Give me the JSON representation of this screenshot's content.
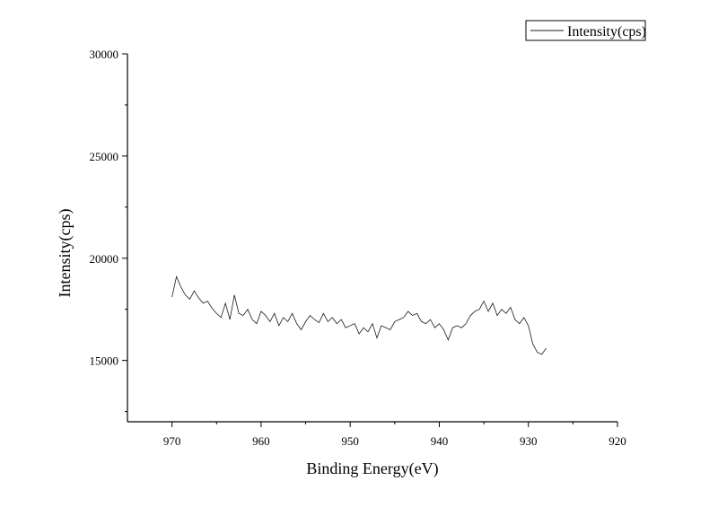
{
  "chart_data": {
    "type": "line",
    "xlabel": "Binding Energy(eV)",
    "ylabel": "Intensity(cps)",
    "xlim": [
      975,
      920
    ],
    "x_reversed": true,
    "ylim": [
      12000,
      30000
    ],
    "x_ticks": [
      970,
      960,
      950,
      940,
      930,
      920
    ],
    "y_ticks": [
      15000,
      20000,
      25000,
      30000
    ],
    "y_minor_ticks": [
      12500,
      17500,
      22500,
      27500
    ],
    "grid": false,
    "legend_position": "top-right",
    "series": [
      {
        "name": "Intensity(cps)",
        "color": "#1a1a1a",
        "x": [
          970,
          969.5,
          969,
          968.5,
          968,
          967.5,
          967,
          966.5,
          966,
          965.5,
          965,
          964.5,
          964,
          963.5,
          963,
          962.5,
          962,
          961.5,
          961,
          960.5,
          960,
          959.5,
          959,
          958.5,
          958,
          957.5,
          957,
          956.5,
          956,
          955.5,
          955,
          954.5,
          954,
          953.5,
          953,
          952.5,
          952,
          951.5,
          951,
          950.5,
          950,
          949.5,
          949,
          948.5,
          948,
          947.5,
          947,
          946.5,
          946,
          945.5,
          945,
          944.5,
          944,
          943.5,
          943,
          942.5,
          942,
          941.5,
          941,
          940.5,
          940,
          939.5,
          939,
          938.5,
          938,
          937.5,
          937,
          936.5,
          936,
          935.5,
          935,
          934.5,
          934,
          933.5,
          933,
          932.5,
          932,
          931.5,
          931,
          930.5,
          930,
          929.5,
          929,
          928.5,
          928
        ],
        "y": [
          18100,
          19100,
          18600,
          18200,
          18000,
          18400,
          18050,
          17800,
          17900,
          17550,
          17300,
          17100,
          17800,
          17000,
          18200,
          17300,
          17200,
          17500,
          17000,
          16800,
          17400,
          17200,
          16900,
          17300,
          16700,
          17100,
          16900,
          17300,
          16800,
          16500,
          16900,
          17200,
          17000,
          16850,
          17300,
          16900,
          17100,
          16800,
          17000,
          16600,
          16700,
          16800,
          16300,
          16600,
          16400,
          16800,
          16100,
          16700,
          16600,
          16500,
          16900,
          17000,
          17100,
          17400,
          17200,
          17300,
          16900,
          16800,
          17000,
          16600,
          16800,
          16500,
          16000,
          16600,
          16700,
          16600,
          16800,
          17200,
          17400,
          17500,
          17900,
          17400,
          17800,
          17200,
          17500,
          17300,
          17600,
          17000,
          16800,
          17100,
          16700,
          15800,
          15400,
          15300,
          15600
        ]
      }
    ]
  }
}
